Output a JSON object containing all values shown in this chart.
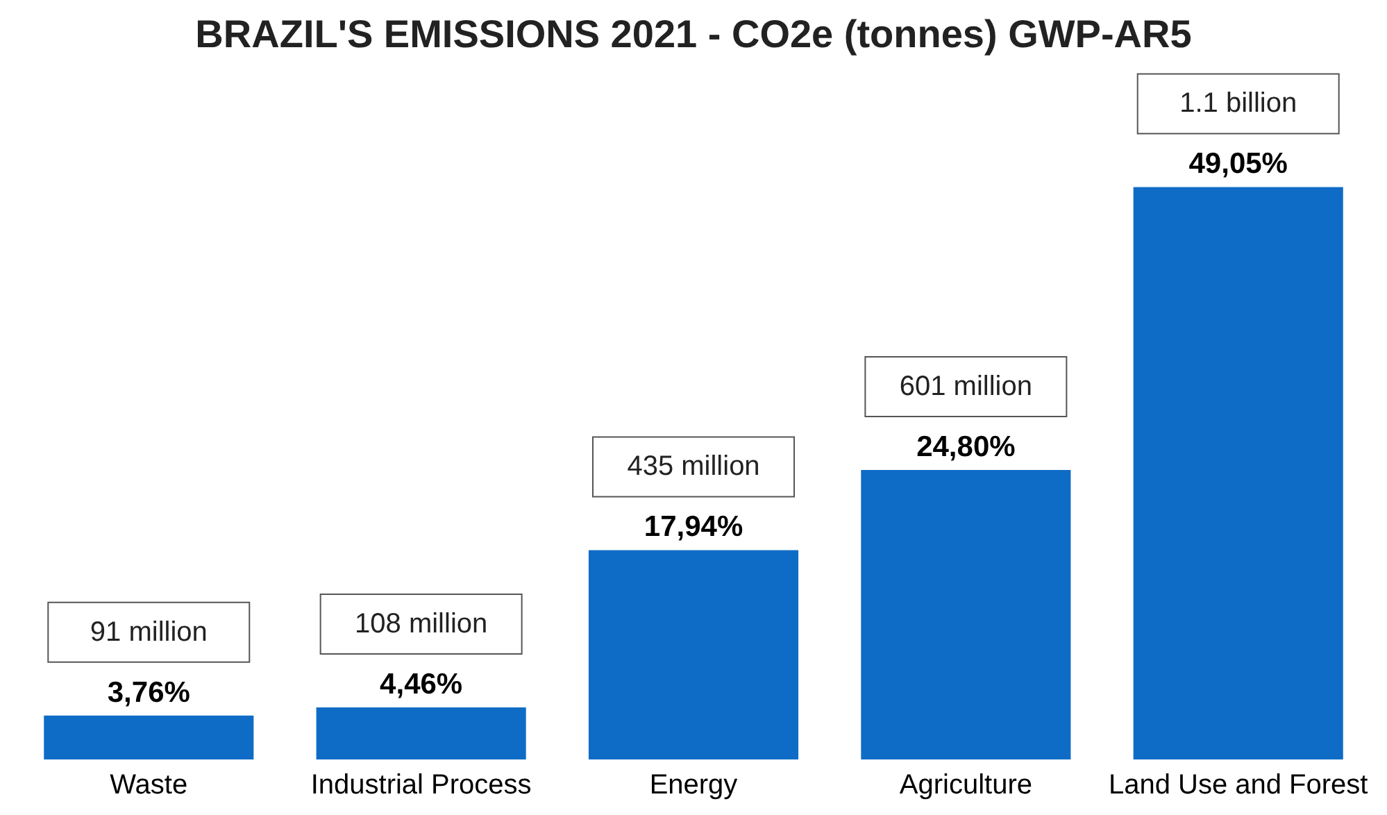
{
  "chart_data": {
    "type": "bar",
    "title": "BRAZIL'S EMISSIONS 2021 - CO2e (tonnes) GWP-AR5",
    "categories": [
      "Waste",
      "Industrial Process",
      "Energy",
      "Agriculture",
      "Land Use and Forest"
    ],
    "values": [
      3.76,
      4.46,
      17.94,
      24.8,
      49.05
    ],
    "value_labels": [
      "3,76%",
      "4,46%",
      "17,94%",
      "24,80%",
      "49,05%"
    ],
    "color": "#0f6cc6",
    "annotations": [
      {
        "text": "91 million",
        "x": "Waste",
        "y": 3.76
      },
      {
        "text": "108 million",
        "x": "Industrial Process",
        "y": 4.46
      },
      {
        "text": "435 million",
        "x": "Energy",
        "y": 17.94
      },
      {
        "text": "601 million",
        "x": "Agriculture",
        "y": 24.8
      },
      {
        "text": "1.1 billion",
        "x": "Land Use and Forest",
        "y": 49.05
      }
    ],
    "grid": false
  }
}
